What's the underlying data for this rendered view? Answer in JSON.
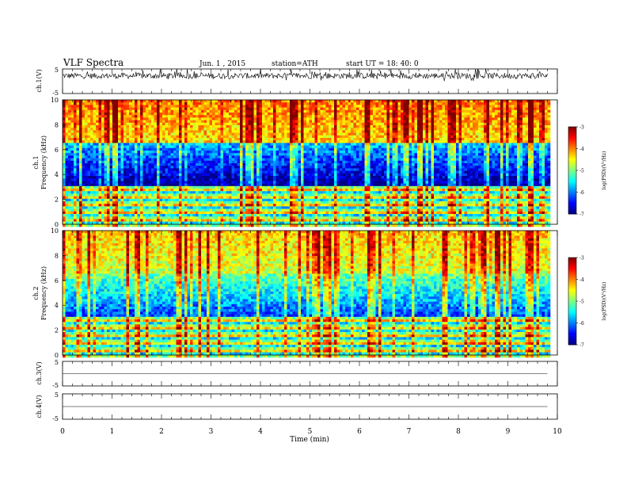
{
  "header": {
    "title": "VLF  Spectra",
    "date": "Jun. 1  , 2015",
    "station": "station=ATH",
    "start": "start  UT =   18: 40: 0"
  },
  "chart_data": [
    {
      "type": "line",
      "ylabel": "ch.1(V)",
      "ylim": [
        -5,
        5
      ],
      "yticks": [
        "5",
        "-5"
      ],
      "baseline": 2.2,
      "noise_amplitude": 1.2
    },
    {
      "type": "heatmap",
      "ylabel_line1": "ch.1",
      "ylabel_line2": "Frequency  (kHz)",
      "ylim": [
        0,
        10
      ],
      "yticks": [
        "0",
        "2",
        "4",
        "6",
        "8",
        "10"
      ],
      "colorbar": {
        "label": "log(PSD)(V²/Hz)",
        "range": [
          -7,
          -3
        ],
        "ticks": [
          "-3",
          "-4",
          "-5",
          "-6",
          "-7"
        ]
      },
      "regimes": {
        "high_freq_level": -4.0,
        "mid_freq_level": -6.5,
        "low_freq_level": -5.0
      }
    },
    {
      "type": "heatmap",
      "ylabel_line1": "ch.2",
      "ylabel_line2": "Frequency  (kHz)",
      "ylim": [
        0,
        10
      ],
      "yticks": [
        "0",
        "2",
        "4",
        "6",
        "8",
        "10"
      ],
      "colorbar": {
        "label": "log(PSD)(V²/Hz)",
        "range": [
          -7,
          -3
        ],
        "ticks": [
          "-3",
          "-4",
          "-5",
          "-6",
          "-7"
        ]
      },
      "regimes": {
        "high_freq_level": -4.3,
        "mid_freq_level": -5.8,
        "low_freq_level": -5.0
      }
    },
    {
      "type": "line",
      "ylabel": "ch.3(V)",
      "ylim": [
        -5,
        5
      ],
      "yticks": [
        "5",
        "-5"
      ],
      "baseline": 0.0,
      "noise_amplitude": 0.05
    },
    {
      "type": "line",
      "ylabel": "ch.4(V)",
      "ylim": [
        -5,
        5
      ],
      "yticks": [
        "5",
        "-5"
      ],
      "baseline": 0.0,
      "noise_amplitude": 0.0
    }
  ],
  "xaxis": {
    "label": "Time  (min)",
    "range": [
      0,
      10
    ],
    "ticks": [
      "0",
      "1",
      "2",
      "3",
      "4",
      "5",
      "6",
      "7",
      "8",
      "9",
      "10"
    ],
    "data_end": 9.8
  }
}
